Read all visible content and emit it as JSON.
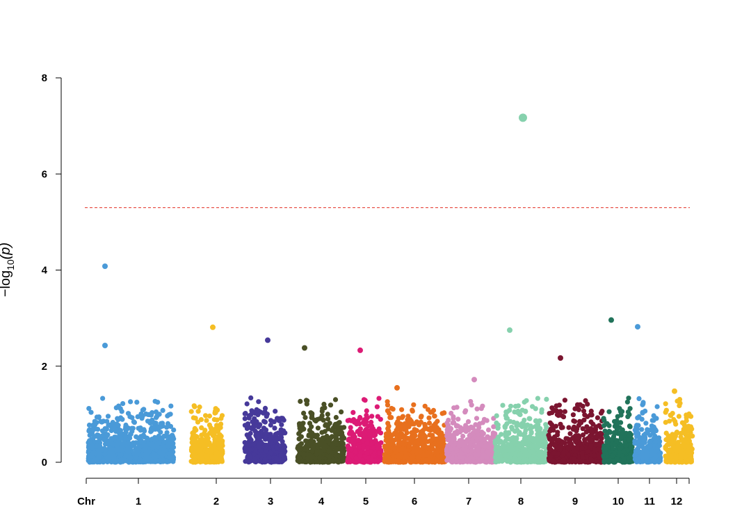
{
  "chart_data": {
    "type": "scatter",
    "subtype": "manhattan",
    "title": "",
    "xlabel": "",
    "ylabel": {
      "prefix": "−log",
      "sub": "10",
      "suffix": "(p)"
    },
    "x_axis_first_label": "Chr",
    "ylim": [
      0,
      8
    ],
    "yticks": [
      0,
      2,
      4,
      6,
      8
    ],
    "grid": false,
    "legend": "none",
    "threshold": {
      "value": 5.3,
      "color": "#e8544a",
      "style": "dashed"
    },
    "chromosomes": [
      {
        "label": "1",
        "color": "#4a9ad8"
      },
      {
        "label": "2",
        "color": "#f5be24"
      },
      {
        "label": "3",
        "color": "#46399a"
      },
      {
        "label": "4",
        "color": "#4a5026"
      },
      {
        "label": "5",
        "color": "#dc1b75"
      },
      {
        "label": "6",
        "color": "#e8701e"
      },
      {
        "label": "7",
        "color": "#d48bbd"
      },
      {
        "label": "8",
        "color": "#86d1ad"
      },
      {
        "label": "9",
        "color": "#7b1530"
      },
      {
        "label": "10",
        "color": "#21735a"
      },
      {
        "label": "11",
        "color": "#4a9ad8"
      },
      {
        "label": "12",
        "color": "#f5be24"
      }
    ],
    "notable_points": [
      {
        "chr": "8",
        "neg_log10_p": 7.17
      },
      {
        "chr": "1",
        "neg_log10_p": 4.08
      },
      {
        "chr": "10",
        "neg_log10_p": 2.96
      },
      {
        "chr": "11",
        "neg_log10_p": 2.82
      },
      {
        "chr": "2",
        "neg_log10_p": 2.81
      },
      {
        "chr": "8",
        "neg_log10_p": 2.75
      },
      {
        "chr": "3",
        "neg_log10_p": 2.54
      },
      {
        "chr": "1",
        "neg_log10_p": 2.43
      },
      {
        "chr": "4",
        "neg_log10_p": 2.38
      },
      {
        "chr": "5",
        "neg_log10_p": 2.33
      },
      {
        "chr": "9",
        "neg_log10_p": 2.17
      },
      {
        "chr": "7",
        "neg_log10_p": 1.72
      },
      {
        "chr": "6",
        "neg_log10_p": 1.55
      },
      {
        "chr": "12",
        "neg_log10_p": 1.48
      }
    ]
  }
}
